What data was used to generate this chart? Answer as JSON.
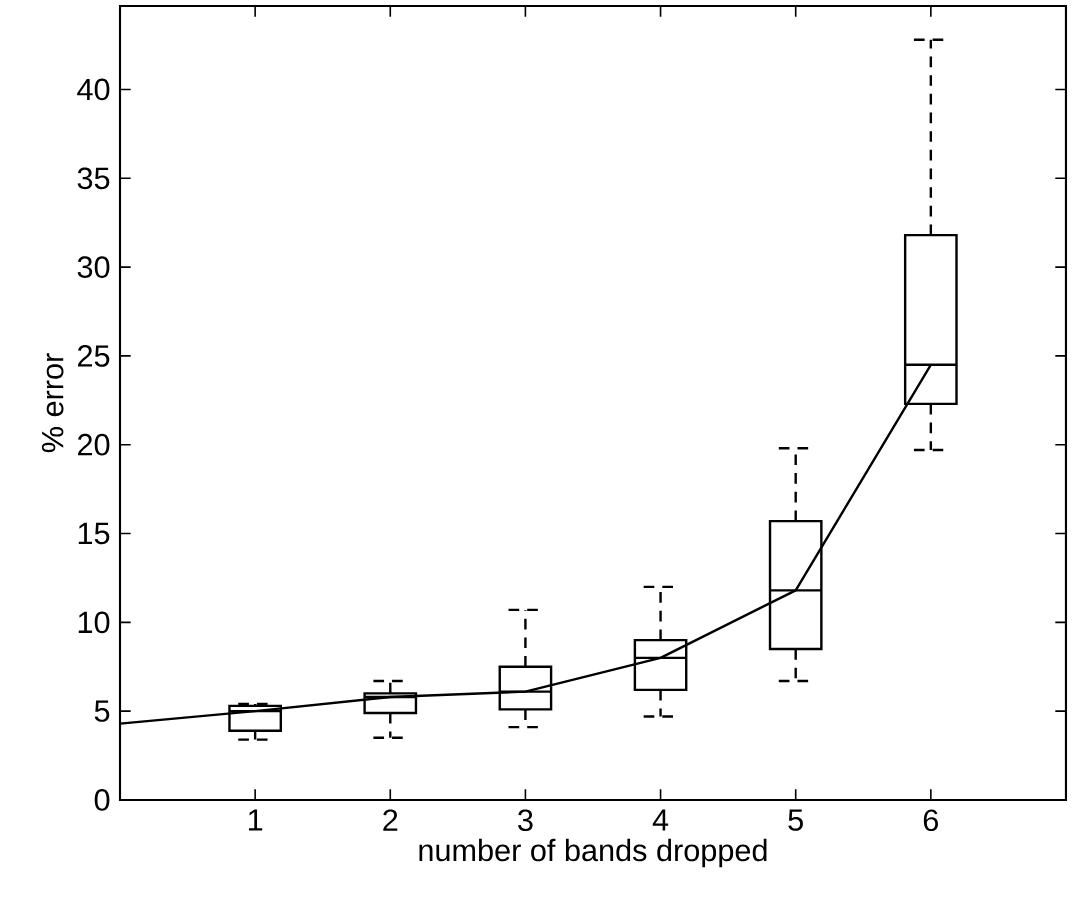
{
  "chart_data": {
    "type": "box",
    "xlabel": "number of bands dropped",
    "ylabel": "% error",
    "xlim": [
      0,
      7
    ],
    "xticks": [
      1,
      2,
      3,
      4,
      5,
      6
    ],
    "ylim": [
      0,
      44.7
    ],
    "yticks": [
      0,
      5,
      10,
      15,
      20,
      25,
      30,
      35,
      40
    ],
    "grid": false,
    "series": [
      {
        "color": "#000000",
        "x": [
          1,
          2,
          3,
          4,
          5,
          6
        ],
        "boxes": [
          {
            "low": 3.4,
            "q1": 3.9,
            "median": 5.0,
            "q3": 5.3,
            "high": 5.4
          },
          {
            "low": 3.5,
            "q1": 4.9,
            "median": 5.8,
            "q3": 6.0,
            "high": 6.7
          },
          {
            "low": 4.1,
            "q1": 5.1,
            "median": 6.1,
            "q3": 7.5,
            "high": 10.7
          },
          {
            "low": 4.7,
            "q1": 6.2,
            "median": 8.0,
            "q3": 9.0,
            "high": 12.0
          },
          {
            "low": 6.7,
            "q1": 8.5,
            "median": 11.8,
            "q3": 15.7,
            "high": 19.8
          },
          {
            "low": 19.7,
            "q1": 22.3,
            "median": 24.5,
            "q3": 31.8,
            "high": 42.8
          }
        ]
      },
      {
        "type": "line",
        "color": "#000000",
        "line_style": "solid",
        "marker": "none",
        "x": [
          0,
          1,
          2,
          3,
          4,
          5,
          6
        ],
        "values": [
          4.3,
          5.0,
          5.8,
          6.1,
          8.0,
          11.8,
          24.5
        ]
      }
    ]
  }
}
